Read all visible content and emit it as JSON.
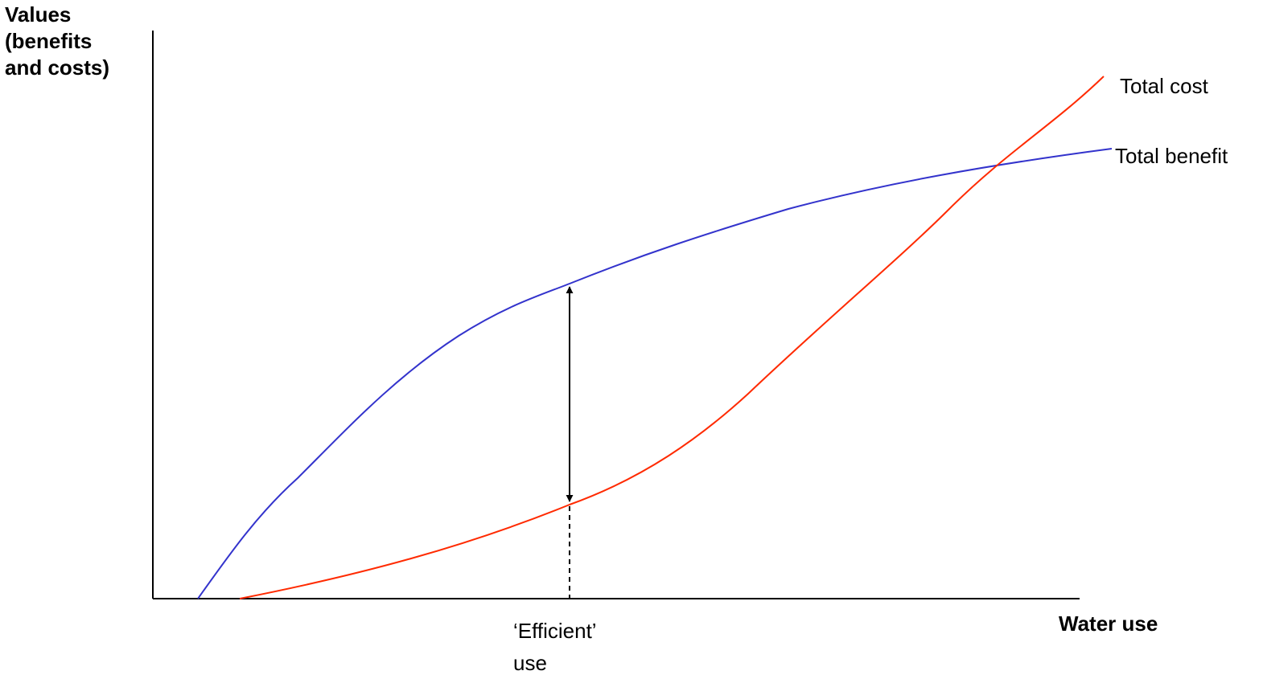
{
  "labels": {
    "y_axis": "Values\n(benefits\nand costs)",
    "x_axis": "Water use",
    "total_cost": "Total cost",
    "total_benefit": "Total benefit",
    "efficient_use": "‘Efficient’\nuse"
  },
  "colors": {
    "axes": "#000000",
    "total_benefit_curve": "#3333cc",
    "total_cost_curve": "#ff2a00",
    "gap_arrow": "#000000"
  }
}
